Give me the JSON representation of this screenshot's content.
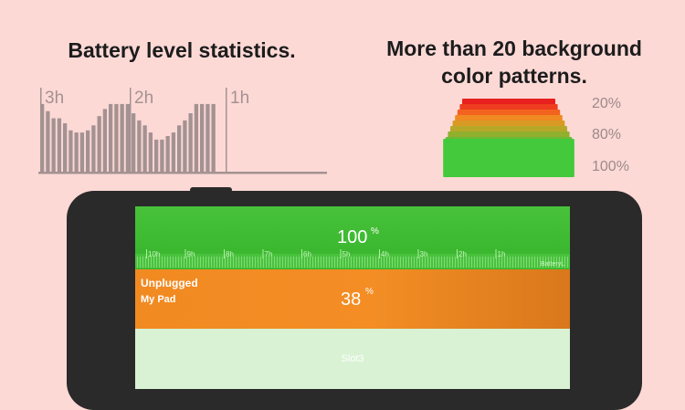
{
  "features": {
    "statistics_title": "Battery level statistics.",
    "patterns_title_line1": "More than 20 background",
    "patterns_title_line2": "color patterns."
  },
  "history_chart": {
    "hour_labels": [
      "3h",
      "2h",
      "1h"
    ],
    "bar_levels": [
      0.95,
      0.85,
      0.75,
      0.75,
      0.68,
      0.58,
      0.55,
      0.55,
      0.58,
      0.65,
      0.78,
      0.88,
      0.95,
      0.95,
      0.95,
      0.95,
      0.82,
      0.72,
      0.65,
      0.55,
      0.45,
      0.45,
      0.5,
      0.55,
      0.65,
      0.72,
      0.82,
      0.95,
      0.95,
      0.95,
      0.95
    ],
    "bar_color": "#a49292"
  },
  "pattern_stack": {
    "labels": [
      "20%",
      "80%",
      "100%"
    ],
    "layer_colors": [
      "#e8201e",
      "#ee3d1f",
      "#f2631f",
      "#f08a22",
      "#d99a24",
      "#b8a82a",
      "#90b02e",
      "#6cb934",
      "#43c93b"
    ]
  },
  "device": {
    "slots": [
      {
        "level": "100",
        "unit": "%",
        "color": "#3fbe33",
        "timeline_labels": [
          "10h",
          "9h",
          "8h",
          "7h",
          "6h",
          "5h",
          "4h",
          "3h",
          "2h",
          "1h"
        ],
        "timeline_brand": "BatteryL"
      },
      {
        "status": "Unplugged",
        "device_name": "My Pad",
        "level": "38",
        "unit": "%",
        "color": "#f28a22"
      },
      {
        "label": "Slot3",
        "color": "#d9f2d4"
      }
    ]
  }
}
